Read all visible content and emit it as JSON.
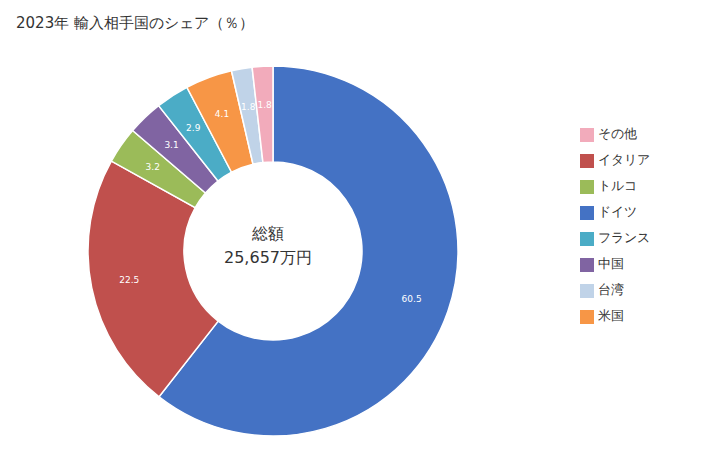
{
  "chart_data": {
    "type": "donut",
    "title": "2023年 輸入相手国のシェア（％）",
    "categories": [
      "ドイツ",
      "イタリア",
      "トルコ",
      "中国",
      "フランス",
      "米国",
      "台湾",
      "その他"
    ],
    "values": [
      60.5,
      22.5,
      3.2,
      3.1,
      2.9,
      4.1,
      1.8,
      1.8
    ],
    "colors": [
      "#4472C4",
      "#C0504D",
      "#9BBB59",
      "#8064A2",
      "#4BACC6",
      "#F79646",
      "#C0D3E8",
      "#F2ABBB"
    ],
    "data_labels": true,
    "legend": "right",
    "annotations": [
      "総額",
      "25,657万円"
    ]
  }
}
